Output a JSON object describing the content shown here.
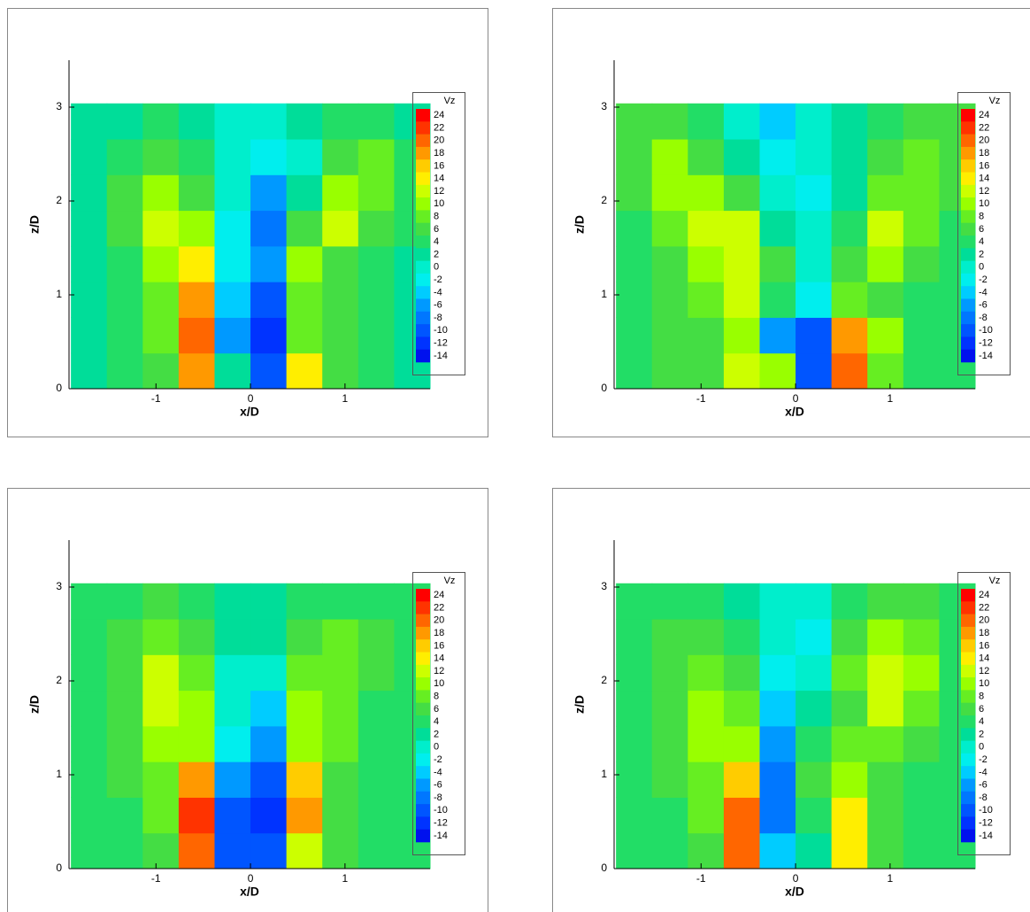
{
  "colorbar": {
    "label": "Vz",
    "levels": [
      24,
      22,
      20,
      18,
      16,
      14,
      12,
      10,
      8,
      6,
      4,
      2,
      0,
      -2,
      -4,
      -6,
      -8,
      -10,
      -12,
      -14
    ],
    "colors": [
      "#ff0000",
      "#ff3300",
      "#ff6600",
      "#ff9900",
      "#ffcc00",
      "#ffee00",
      "#ccff00",
      "#99ff00",
      "#66ee22",
      "#44dd44",
      "#22dd66",
      "#00dd99",
      "#00eecc",
      "#00eeee",
      "#00ccff",
      "#0099ff",
      "#0077ff",
      "#0055ff",
      "#0033ff",
      "#0011ee"
    ]
  },
  "chart_data": [
    {
      "type": "heatmap",
      "xlabel": "x/D",
      "ylabel": "z/D",
      "xlim": [
        -1.92,
        1.9
      ],
      "ylim": [
        0,
        3.5
      ],
      "xticks": [
        -1,
        0,
        1
      ],
      "yticks": [
        0,
        1,
        2,
        3
      ],
      "xbins": [
        -1.9,
        -1.52,
        -1.14,
        -0.76,
        -0.38,
        0,
        0.38,
        0.76,
        1.14,
        1.52,
        1.9
      ],
      "ybins": [
        0,
        0.38,
        0.76,
        1.14,
        1.52,
        1.9,
        2.28,
        2.66,
        3.04
      ],
      "values": [
        [
          2,
          4,
          6,
          18,
          2,
          -10,
          14,
          6,
          4,
          2
        ],
        [
          2,
          4,
          8,
          20,
          -6,
          -12,
          8,
          6,
          4,
          2
        ],
        [
          2,
          4,
          8,
          18,
          -4,
          -10,
          8,
          6,
          4,
          2
        ],
        [
          2,
          4,
          10,
          14,
          -2,
          -6,
          10,
          6,
          4,
          2
        ],
        [
          2,
          6,
          12,
          10,
          -2,
          -8,
          6,
          12,
          6,
          4
        ],
        [
          2,
          6,
          10,
          6,
          0,
          -6,
          2,
          10,
          8,
          4
        ],
        [
          2,
          4,
          6,
          4,
          0,
          -2,
          0,
          6,
          8,
          4
        ],
        [
          2,
          2,
          4,
          2,
          0,
          0,
          2,
          4,
          4,
          2
        ]
      ]
    },
    {
      "type": "heatmap",
      "xlabel": "x/D",
      "ylabel": "z/D",
      "xlim": [
        -1.92,
        1.9
      ],
      "ylim": [
        0,
        3.5
      ],
      "xticks": [
        -1,
        0,
        1
      ],
      "yticks": [
        0,
        1,
        2,
        3
      ],
      "xbins": [
        -1.9,
        -1.52,
        -1.14,
        -0.76,
        -0.38,
        0,
        0.38,
        0.76,
        1.14,
        1.52,
        1.9
      ],
      "ybins": [
        0,
        0.38,
        0.76,
        1.14,
        1.52,
        1.9,
        2.28,
        2.66,
        3.04
      ],
      "values": [
        [
          4,
          6,
          6,
          12,
          10,
          -10,
          20,
          8,
          4,
          4
        ],
        [
          4,
          6,
          6,
          10,
          -6,
          -10,
          18,
          10,
          4,
          4
        ],
        [
          4,
          6,
          8,
          12,
          4,
          -2,
          8,
          6,
          4,
          4
        ],
        [
          4,
          6,
          10,
          12,
          6,
          0,
          6,
          10,
          6,
          4
        ],
        [
          4,
          8,
          12,
          12,
          2,
          0,
          4,
          12,
          8,
          4
        ],
        [
          6,
          10,
          10,
          6,
          0,
          -2,
          2,
          8,
          8,
          6
        ],
        [
          6,
          10,
          6,
          2,
          -2,
          0,
          2,
          6,
          8,
          6
        ],
        [
          6,
          6,
          4,
          0,
          -4,
          0,
          2,
          4,
          6,
          6
        ]
      ]
    },
    {
      "type": "heatmap",
      "xlabel": "x/D",
      "ylabel": "z/D",
      "xlim": [
        -1.92,
        1.9
      ],
      "ylim": [
        0,
        3.5
      ],
      "xticks": [
        -1,
        0,
        1
      ],
      "yticks": [
        0,
        1,
        2,
        3
      ],
      "xbins": [
        -1.9,
        -1.52,
        -1.14,
        -0.76,
        -0.38,
        0,
        0.38,
        0.76,
        1.14,
        1.52,
        1.9
      ],
      "ybins": [
        0,
        0.38,
        0.76,
        1.14,
        1.52,
        1.9,
        2.28,
        2.66,
        3.04
      ],
      "values": [
        [
          4,
          4,
          6,
          20,
          -10,
          -10,
          12,
          6,
          4,
          4
        ],
        [
          4,
          4,
          8,
          22,
          -10,
          -12,
          18,
          6,
          4,
          4
        ],
        [
          4,
          6,
          8,
          18,
          -6,
          -10,
          16,
          6,
          4,
          4
        ],
        [
          4,
          6,
          10,
          10,
          -2,
          -6,
          10,
          8,
          4,
          4
        ],
        [
          4,
          6,
          12,
          10,
          0,
          -4,
          10,
          8,
          4,
          4
        ],
        [
          4,
          6,
          12,
          8,
          0,
          0,
          8,
          8,
          6,
          4
        ],
        [
          4,
          6,
          8,
          6,
          2,
          2,
          6,
          8,
          6,
          4
        ],
        [
          4,
          4,
          6,
          4,
          2,
          2,
          4,
          4,
          4,
          4
        ]
      ]
    },
    {
      "type": "heatmap",
      "xlabel": "x/D",
      "ylabel": "z/D",
      "xlim": [
        -1.92,
        1.9
      ],
      "ylim": [
        0,
        3.5
      ],
      "xticks": [
        -1,
        0,
        1
      ],
      "yticks": [
        0,
        1,
        2,
        3
      ],
      "xbins": [
        -1.9,
        -1.52,
        -1.14,
        -0.76,
        -0.38,
        0,
        0.38,
        0.76,
        1.14,
        1.52,
        1.9
      ],
      "ybins": [
        0,
        0.38,
        0.76,
        1.14,
        1.52,
        1.9,
        2.28,
        2.66,
        3.04
      ],
      "values": [
        [
          4,
          4,
          6,
          20,
          -4,
          2,
          14,
          6,
          4,
          4
        ],
        [
          4,
          4,
          8,
          20,
          -8,
          4,
          14,
          6,
          4,
          4
        ],
        [
          4,
          6,
          8,
          16,
          -8,
          6,
          10,
          6,
          4,
          4
        ],
        [
          4,
          6,
          10,
          10,
          -6,
          4,
          8,
          8,
          6,
          4
        ],
        [
          4,
          6,
          10,
          8,
          -4,
          2,
          6,
          12,
          8,
          4
        ],
        [
          4,
          6,
          8,
          6,
          -2,
          0,
          8,
          12,
          10,
          4
        ],
        [
          4,
          6,
          6,
          4,
          0,
          -2,
          6,
          10,
          8,
          4
        ],
        [
          4,
          4,
          4,
          2,
          0,
          0,
          4,
          6,
          6,
          4
        ]
      ]
    }
  ]
}
